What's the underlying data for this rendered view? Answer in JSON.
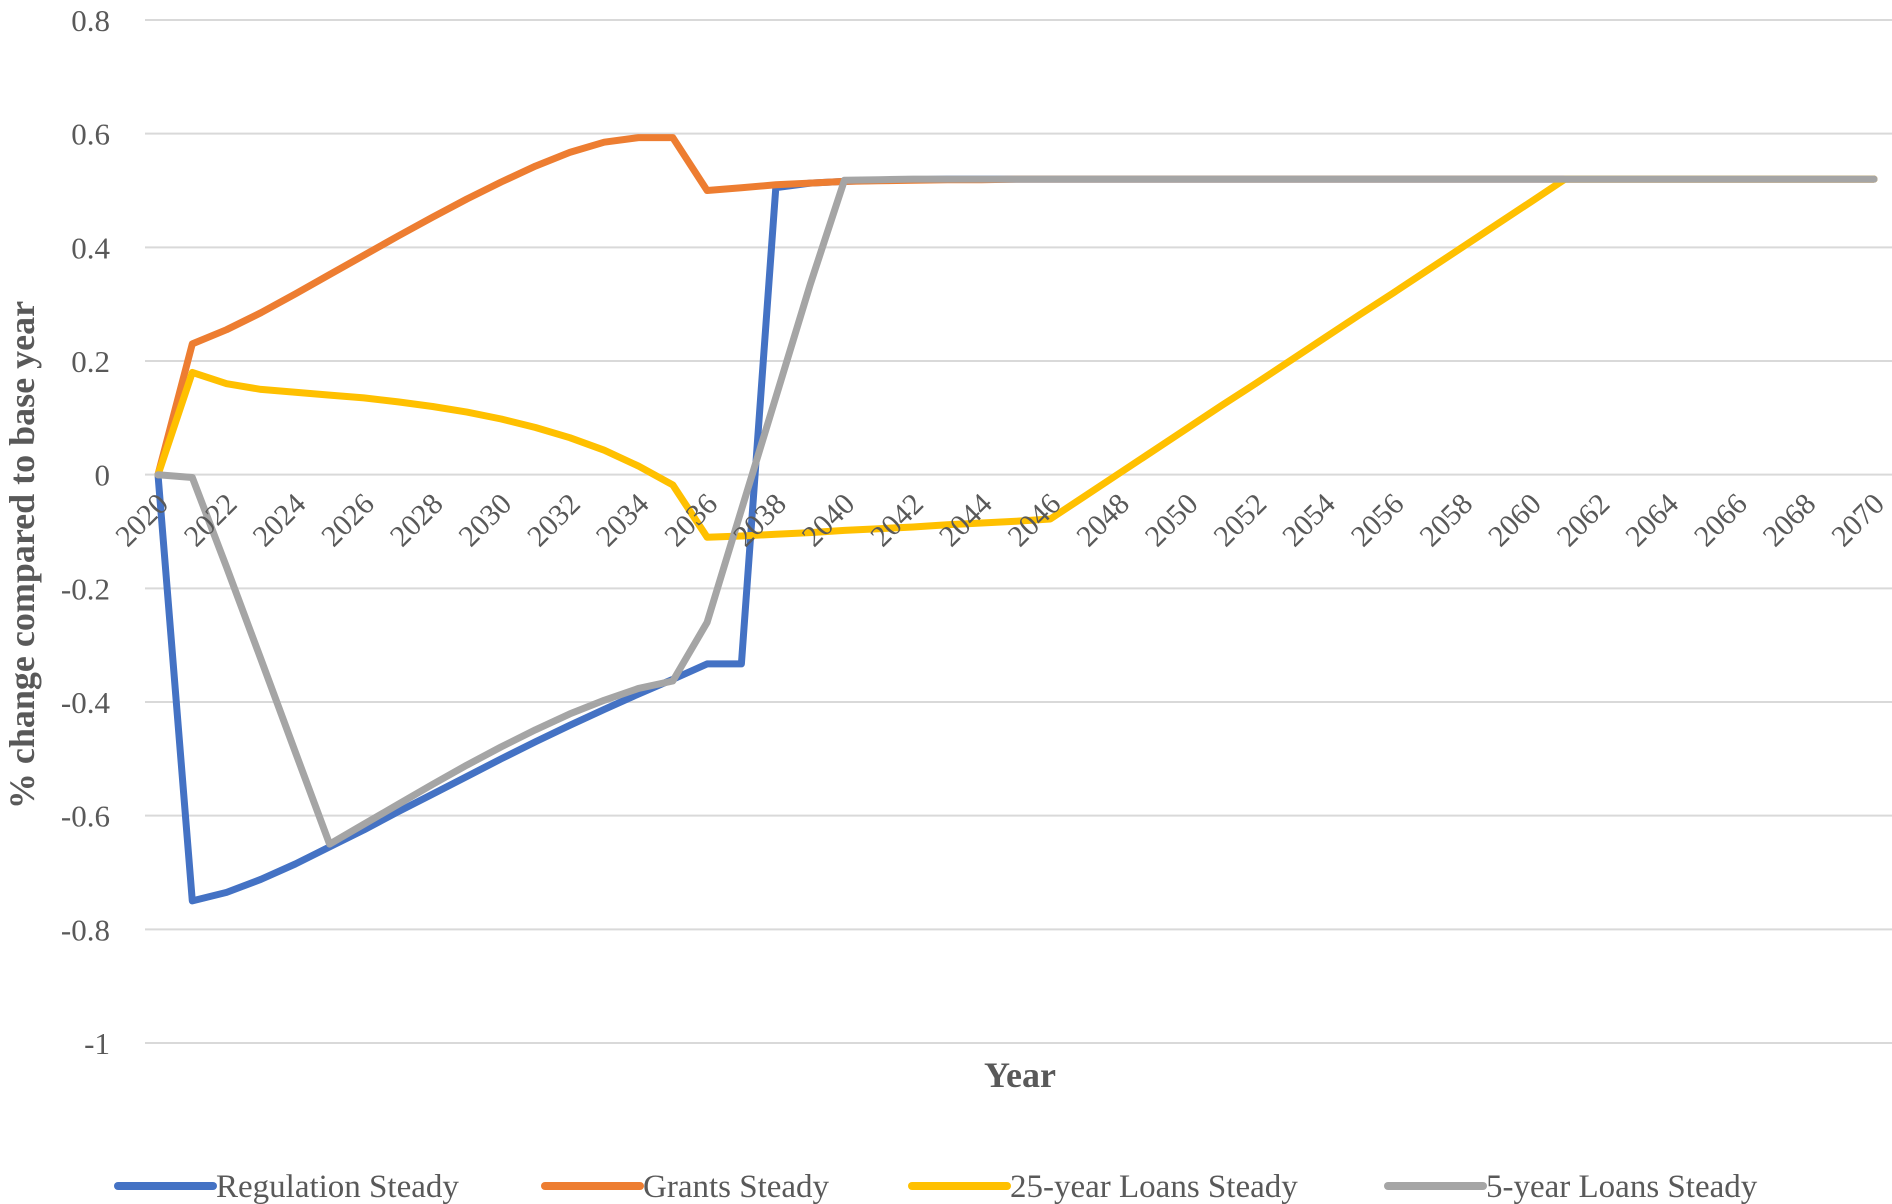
{
  "chart_data": {
    "type": "line",
    "title": "",
    "xlabel": "Year",
    "ylabel": "% change compared to base year",
    "ylim": [
      -1,
      0.8
    ],
    "y_ticks": [
      0.8,
      0.6,
      0.4,
      0.2,
      0,
      -0.2,
      -0.4,
      -0.6,
      -0.8,
      -1
    ],
    "y_tick_labels": [
      "0.8",
      "0.6",
      "0.4",
      "0.2",
      "0",
      "-0.2",
      "-0.4",
      "-0.6",
      "-0.8",
      "-1"
    ],
    "x_tick_labels": [
      "2020",
      "2022",
      "2024",
      "2026",
      "2028",
      "2030",
      "2032",
      "2034",
      "2036",
      "2038",
      "2040",
      "2042",
      "2044",
      "2046",
      "2048",
      "2050",
      "2052",
      "2054",
      "2056",
      "2058",
      "2060",
      "2062",
      "2064",
      "2066",
      "2068",
      "2070"
    ],
    "x": [
      2020,
      2021,
      2022,
      2023,
      2024,
      2025,
      2026,
      2027,
      2028,
      2029,
      2030,
      2031,
      2032,
      2033,
      2034,
      2035,
      2036,
      2037,
      2038,
      2039,
      2040,
      2041,
      2042,
      2043,
      2044,
      2045,
      2046,
      2047,
      2048,
      2049,
      2050,
      2051,
      2052,
      2053,
      2054,
      2055,
      2056,
      2057,
      2058,
      2059,
      2060,
      2061,
      2062,
      2063,
      2064,
      2065,
      2066,
      2067,
      2068,
      2069,
      2070
    ],
    "grid": "horizontal",
    "legend_position": "bottom",
    "series": [
      {
        "name": "Regulation Steady",
        "color": "#4472c4",
        "values": [
          0,
          -0.75,
          -0.735,
          -0.712,
          -0.685,
          -0.655,
          -0.625,
          -0.593,
          -0.562,
          -0.531,
          -0.5,
          -0.47,
          -0.441,
          -0.413,
          -0.386,
          -0.36,
          -0.333,
          -0.333,
          0.505,
          0.513,
          0.516,
          0.518,
          0.519,
          0.52,
          0.52,
          0.52,
          0.52,
          0.52,
          0.52,
          0.52,
          0.52,
          0.52,
          0.52,
          0.52,
          0.52,
          0.52,
          0.52,
          0.52,
          0.52,
          0.52,
          0.52,
          0.52,
          0.52,
          0.52,
          0.52,
          0.52,
          0.52,
          0.52,
          0.52,
          0.52,
          0.52
        ]
      },
      {
        "name": "Grants Steady",
        "color": "#ed7d31",
        "values": [
          0,
          0.23,
          0.255,
          0.285,
          0.318,
          0.352,
          0.386,
          0.42,
          0.453,
          0.485,
          0.515,
          0.543,
          0.567,
          0.585,
          0.593,
          0.593,
          0.5,
          0.505,
          0.51,
          0.513,
          0.516,
          0.517,
          0.518,
          0.519,
          0.519,
          0.52,
          0.52,
          0.52,
          0.52,
          0.52,
          0.52,
          0.52,
          0.52,
          0.52,
          0.52,
          0.52,
          0.52,
          0.52,
          0.52,
          0.52,
          0.52,
          0.52,
          0.52,
          0.52,
          0.52,
          0.52,
          0.52,
          0.52,
          0.52,
          0.52,
          0.52
        ]
      },
      {
        "name": "25-year Loans Steady",
        "color": "#ffc000",
        "values": [
          0,
          0.18,
          0.16,
          0.15,
          0.145,
          0.14,
          0.135,
          0.128,
          0.12,
          0.11,
          0.098,
          0.083,
          0.065,
          0.043,
          0.015,
          -0.018,
          -0.11,
          -0.108,
          -0.105,
          -0.102,
          -0.098,
          -0.095,
          -0.092,
          -0.088,
          -0.085,
          -0.082,
          -0.078,
          -0.038,
          0.002,
          0.042,
          0.082,
          0.122,
          0.161,
          0.201,
          0.241,
          0.281,
          0.32,
          0.36,
          0.4,
          0.44,
          0.48,
          0.52,
          0.52,
          0.52,
          0.52,
          0.52,
          0.52,
          0.52,
          0.52,
          0.52,
          0.52
        ]
      },
      {
        "name": "5-year Loans Steady",
        "color": "#a5a5a5",
        "values": [
          0,
          -0.005,
          -0.163,
          -0.325,
          -0.488,
          -0.65,
          -0.615,
          -0.58,
          -0.545,
          -0.511,
          -0.479,
          -0.449,
          -0.421,
          -0.397,
          -0.376,
          -0.363,
          -0.26,
          -0.062,
          0.136,
          0.334,
          0.518,
          0.519,
          0.52,
          0.52,
          0.52,
          0.52,
          0.52,
          0.52,
          0.52,
          0.52,
          0.52,
          0.52,
          0.52,
          0.52,
          0.52,
          0.52,
          0.52,
          0.52,
          0.52,
          0.52,
          0.52,
          0.52,
          0.52,
          0.52,
          0.52,
          0.52,
          0.52,
          0.52,
          0.52,
          0.52,
          0.52
        ]
      }
    ]
  }
}
